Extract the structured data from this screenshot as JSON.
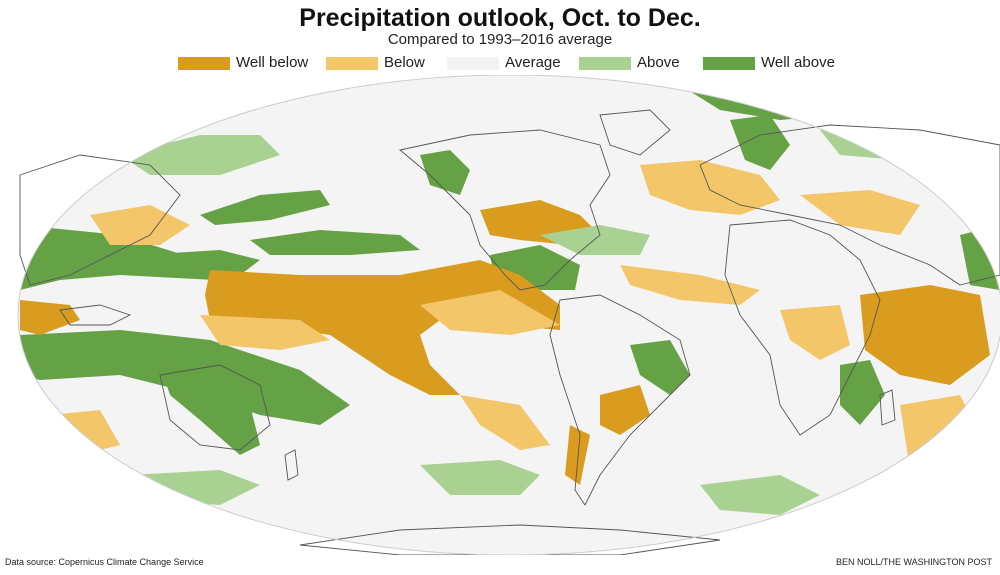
{
  "header": {
    "title": "Precipitation outlook, Oct. to Dec.",
    "subtitle": "Compared to 1993–2016 average"
  },
  "legend": [
    {
      "label": "Well below",
      "color": "#d99c1f"
    },
    {
      "label": "Below",
      "color": "#f3c66a"
    },
    {
      "label": "Average",
      "color": "#f2f2f2"
    },
    {
      "label": "Above",
      "color": "#a9d192"
    },
    {
      "label": "Well above",
      "color": "#65a145"
    }
  ],
  "map": {
    "projection": "oval world map (Pacific-centered)",
    "ocean_color": "#f4f4f4",
    "border_color": "#555555"
  },
  "footer": {
    "source": "Data source: Copernicus Climate Change Service",
    "credit": "BEN NOLL/THE WASHINGTON POST"
  }
}
